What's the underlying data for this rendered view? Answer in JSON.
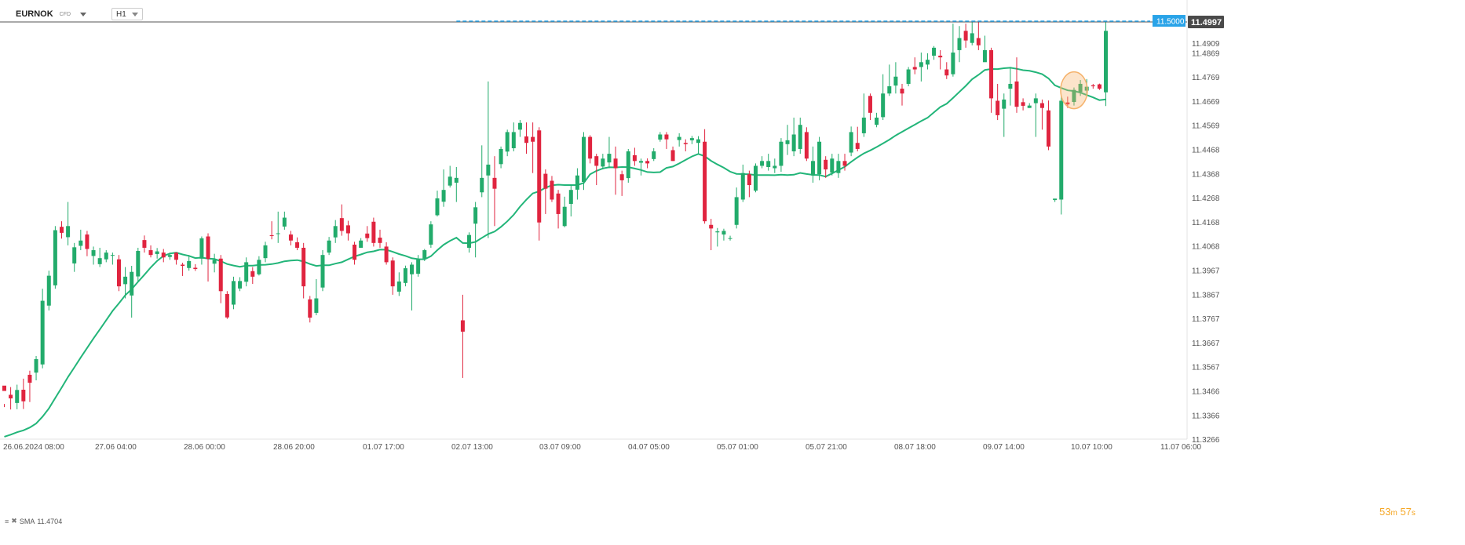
{
  "header": {
    "symbol": "EURNOK",
    "instrument_type": "CFD",
    "timeframe": "H1"
  },
  "indicator": {
    "name": "SMA",
    "value": "11.4704"
  },
  "countdown": {
    "minutes": "53",
    "minutes_unit": "m",
    "seconds": "57",
    "seconds_unit": "s"
  },
  "colors": {
    "up": "#22ab6b",
    "down": "#e0243f",
    "sma": "#22b579",
    "price_line": "#555555",
    "alert_line": "#29a3e8",
    "highlight": "#f5b26b"
  },
  "chart_data": {
    "type": "candlestick",
    "symbol": "EURNOK",
    "timeframe": "H1",
    "ylim": [
      11.3266,
      11.5088
    ],
    "y_ticks": [
      "11.4909",
      "11.4869",
      "11.4769",
      "11.4669",
      "11.4569",
      "11.4468",
      "11.4368",
      "11.4268",
      "11.4168",
      "11.4068",
      "11.3967",
      "11.3867",
      "11.3767",
      "11.3667",
      "11.3567",
      "11.3466",
      "11.3366",
      "11.3266"
    ],
    "x_tick_labels": [
      "26.06.2024 08:00",
      "27.06 04:00",
      "28.06 00:00",
      "28.06 20:00",
      "01.07 17:00",
      "02.07 13:00",
      "03.07 09:00",
      "04.07 05:00",
      "05.07 01:00",
      "05.07 21:00",
      "08.07 18:00",
      "09.07 14:00",
      "10.07 10:00",
      "11.07 06:00"
    ],
    "current_price": 11.4997,
    "current_price_label": "11.4997",
    "alert_level": 11.5,
    "alert_label": "11.5000",
    "highlighted_candle_index": 168,
    "sma_period_label": "SMA",
    "sma_last": 11.4704,
    "ohlc": [
      [
        11.3488,
        11.3466,
        11.3412,
        11.3399
      ],
      [
        11.345,
        11.3435,
        11.3482,
        11.3389
      ],
      [
        11.3416,
        11.347,
        11.3492,
        11.339
      ],
      [
        11.3471,
        11.3423,
        11.3517,
        11.3391
      ],
      [
        11.3533,
        11.35,
        11.355,
        11.342
      ],
      [
        11.3542,
        11.3598,
        11.3611,
        11.351
      ],
      [
        11.3576,
        11.384,
        11.389,
        11.356
      ],
      [
        11.382,
        11.3944,
        11.3965,
        11.38
      ],
      [
        11.3904,
        11.4133,
        11.415,
        11.389
      ],
      [
        11.4147,
        11.4122,
        11.417,
        11.4098
      ],
      [
        11.4104,
        11.415,
        11.425,
        11.407
      ],
      [
        11.3995,
        11.4062,
        11.408,
        11.396
      ],
      [
        11.4068,
        11.409,
        11.4135,
        11.405
      ],
      [
        11.4115,
        11.4055,
        11.413,
        11.4025
      ],
      [
        11.4026,
        11.405,
        11.4065,
        11.399
      ],
      [
        11.3992,
        11.4017,
        11.406,
        11.398
      ],
      [
        11.4012,
        11.404,
        11.405,
        11.4
      ],
      [
        11.4028,
        11.403,
        11.404,
        11.399
      ],
      [
        11.4012,
        11.39,
        11.403,
        11.388
      ],
      [
        11.3909,
        11.394,
        11.398,
        11.385
      ],
      [
        11.3862,
        11.396,
        11.3985,
        11.377
      ],
      [
        11.3941,
        11.4047,
        11.406,
        11.392
      ],
      [
        11.4092,
        11.406,
        11.4111,
        11.404
      ],
      [
        11.405,
        11.403,
        11.407,
        11.402
      ],
      [
        11.4034,
        11.4045,
        11.4059,
        11.4015
      ],
      [
        11.404,
        11.402,
        11.4055,
        11.4
      ],
      [
        11.4022,
        11.403,
        11.404,
        11.401
      ],
      [
        11.404,
        11.401,
        11.4041,
        11.399
      ],
      [
        11.399,
        11.3985,
        11.3998,
        11.3943
      ],
      [
        11.3976,
        11.4005,
        11.403,
        11.3965
      ],
      [
        11.3977,
        11.3972,
        11.3992,
        11.3964
      ],
      [
        11.4015,
        11.4099,
        11.4107,
        11.399
      ],
      [
        11.4107,
        11.4014,
        11.412,
        11.392
      ],
      [
        11.3994,
        11.401,
        11.4035,
        11.3958
      ],
      [
        11.4015,
        11.388,
        11.403,
        11.383
      ],
      [
        11.3868,
        11.3771,
        11.388,
        11.3765
      ],
      [
        11.3824,
        11.3922,
        11.394,
        11.3805
      ],
      [
        11.3891,
        11.3922,
        11.3938,
        11.388
      ],
      [
        11.3919,
        11.4,
        11.402,
        11.39
      ],
      [
        11.3963,
        11.394,
        11.398,
        11.391
      ],
      [
        11.395,
        11.401,
        11.4025,
        11.3945
      ],
      [
        11.4017,
        11.407,
        11.4085,
        11.4
      ],
      [
        11.4112,
        11.411,
        11.417,
        11.4095
      ],
      [
        11.4118,
        11.412,
        11.421,
        11.408
      ],
      [
        11.4148,
        11.4185,
        11.421,
        11.4135
      ],
      [
        11.4115,
        11.409,
        11.413,
        11.407
      ],
      [
        11.4083,
        11.406,
        11.4103,
        11.405
      ],
      [
        11.406,
        11.39,
        11.408,
        11.385
      ],
      [
        11.3846,
        11.377,
        11.386,
        11.375
      ],
      [
        11.379,
        11.385,
        11.393,
        11.378
      ],
      [
        11.3895,
        11.403,
        11.405,
        11.388
      ],
      [
        11.404,
        11.409,
        11.4105,
        11.403
      ],
      [
        11.4103,
        11.415,
        11.4175,
        11.408
      ],
      [
        11.4183,
        11.413,
        11.424,
        11.411
      ],
      [
        11.4153,
        11.412,
        11.4172,
        11.409
      ],
      [
        11.4073,
        11.401,
        11.4085,
        11.399
      ],
      [
        11.406,
        11.409,
        11.41,
        11.406
      ],
      [
        11.4119,
        11.41,
        11.415,
        11.4085
      ],
      [
        11.4168,
        11.408,
        11.4185,
        11.4065
      ],
      [
        11.4102,
        11.408,
        11.4135,
        11.406
      ],
      [
        11.4065,
        11.4,
        11.4083,
        11.399
      ],
      [
        11.4007,
        11.39,
        11.402,
        11.3865
      ],
      [
        11.3878,
        11.392,
        11.3958,
        11.386
      ],
      [
        11.3914,
        11.3975,
        11.3986,
        11.39
      ],
      [
        11.395,
        11.399,
        11.4,
        11.38
      ],
      [
        11.3952,
        11.4012,
        11.403,
        11.394
      ],
      [
        11.4015,
        11.405,
        11.4055,
        11.4005
      ],
      [
        11.4073,
        11.4157,
        11.417,
        11.406
      ],
      [
        11.4195,
        11.4265,
        11.4297,
        11.419
      ],
      [
        11.4251,
        11.43,
        11.4385,
        11.423
      ],
      [
        11.4318,
        11.4355,
        11.44,
        11.431
      ],
      [
        11.433,
        11.435,
        11.4395,
        11.425
      ],
      [
        11.3759,
        11.3712,
        11.3865,
        11.352
      ],
      [
        11.406,
        11.4113,
        11.4124,
        11.404
      ],
      [
        11.416,
        11.4228,
        11.425,
        11.402
      ],
      [
        11.429,
        11.435,
        11.4485,
        11.427
      ],
      [
        11.436,
        11.4405,
        11.475,
        11.41
      ],
      [
        11.435,
        11.4305,
        11.444,
        11.415
      ],
      [
        11.4407,
        11.447,
        11.448,
        11.439
      ],
      [
        11.4459,
        11.454,
        11.455,
        11.444
      ],
      [
        11.4473,
        11.454,
        11.458,
        11.446
      ],
      [
        11.455,
        11.4578,
        11.459,
        11.452
      ],
      [
        11.4522,
        11.4495,
        11.458,
        11.445
      ],
      [
        11.452,
        11.45,
        11.458,
        11.437
      ],
      [
        11.4547,
        11.4165,
        11.456,
        11.409
      ],
      [
        11.4367,
        11.4305,
        11.4385,
        11.42
      ],
      [
        11.4338,
        11.426,
        11.4358,
        11.425
      ],
      [
        11.4285,
        11.42,
        11.43,
        11.414
      ],
      [
        11.415,
        11.423,
        11.4272,
        11.4145
      ],
      [
        11.4242,
        11.43,
        11.432,
        11.419
      ],
      [
        11.4301,
        11.436,
        11.439,
        11.426
      ],
      [
        11.4333,
        11.452,
        11.454,
        11.43
      ],
      [
        11.452,
        11.443,
        11.4527,
        11.441
      ],
      [
        11.444,
        11.44,
        11.445,
        11.432
      ],
      [
        11.4397,
        11.443,
        11.445,
        11.4385
      ],
      [
        11.4414,
        11.445,
        11.452,
        11.439
      ],
      [
        11.443,
        11.439,
        11.448,
        11.428
      ],
      [
        11.4365,
        11.434,
        11.438,
        11.4275
      ],
      [
        11.4349,
        11.446,
        11.447,
        11.433
      ],
      [
        11.4444,
        11.442,
        11.4475,
        11.44
      ],
      [
        11.4413,
        11.442,
        11.443,
        11.436
      ],
      [
        11.442,
        11.441,
        11.4431,
        11.439
      ],
      [
        11.4428,
        11.446,
        11.4473,
        11.442
      ],
      [
        11.4509,
        11.453,
        11.454,
        11.45
      ],
      [
        11.453,
        11.451,
        11.454,
        11.447
      ],
      [
        11.4465,
        11.442,
        11.448,
        11.442
      ],
      [
        11.4507,
        11.452,
        11.4535,
        11.448
      ],
      [
        11.4495,
        11.449,
        11.451,
        11.446
      ],
      [
        11.4506,
        11.4515,
        11.4524,
        11.449
      ],
      [
        11.4495,
        11.451,
        11.4523,
        11.445
      ],
      [
        11.45,
        11.417,
        11.4552,
        11.416
      ],
      [
        11.4155,
        11.414,
        11.418,
        11.405
      ],
      [
        11.4124,
        11.4128,
        11.4142,
        11.4065
      ],
      [
        11.4115,
        11.413,
        11.4139,
        11.409
      ],
      [
        11.4098,
        11.41,
        11.411,
        11.409
      ],
      [
        11.4155,
        11.427,
        11.431,
        11.414
      ],
      [
        11.426,
        11.437,
        11.4405,
        11.425
      ],
      [
        11.4365,
        11.432,
        11.438,
        11.427
      ],
      [
        11.4297,
        11.44,
        11.441,
        11.429
      ],
      [
        11.44,
        11.442,
        11.444,
        11.439
      ],
      [
        11.4395,
        11.442,
        11.445,
        11.438
      ],
      [
        11.439,
        11.44,
        11.443,
        11.437
      ],
      [
        11.44,
        11.45,
        11.4515,
        11.4375
      ],
      [
        11.449,
        11.4506,
        11.457,
        11.4445
      ],
      [
        11.446,
        11.453,
        11.46,
        11.444
      ],
      [
        11.447,
        11.457,
        11.46,
        11.445
      ],
      [
        11.454,
        11.443,
        11.456,
        11.442
      ],
      [
        11.436,
        11.442,
        11.448,
        11.433
      ],
      [
        11.4365,
        11.45,
        11.452,
        11.434
      ],
      [
        11.4425,
        11.4385,
        11.444,
        11.435
      ],
      [
        11.4372,
        11.443,
        11.445,
        11.436
      ],
      [
        11.437,
        11.442,
        11.445,
        11.435
      ],
      [
        11.442,
        11.44,
        11.445,
        11.438
      ],
      [
        11.4455,
        11.454,
        11.4563,
        11.444
      ],
      [
        11.4495,
        11.447,
        11.4562,
        11.446
      ],
      [
        11.4535,
        11.46,
        11.47,
        11.452
      ],
      [
        11.469,
        11.462,
        11.47,
        11.459
      ],
      [
        11.457,
        11.46,
        11.462,
        11.456
      ],
      [
        11.4602,
        11.47,
        11.478,
        11.459
      ],
      [
        11.47,
        11.473,
        11.482,
        11.469
      ],
      [
        11.4733,
        11.477,
        11.483,
        11.47
      ],
      [
        11.472,
        11.47,
        11.474,
        11.465
      ],
      [
        11.474,
        11.48,
        11.481,
        11.473
      ],
      [
        11.481,
        11.48,
        11.485,
        11.478
      ],
      [
        11.481,
        11.483,
        11.487,
        11.475
      ],
      [
        11.482,
        11.484,
        11.4867,
        11.48
      ],
      [
        11.4857,
        11.489,
        11.4897,
        11.484
      ],
      [
        11.4857,
        11.485,
        11.488,
        11.48
      ],
      [
        11.48,
        11.4775,
        11.483,
        11.476
      ],
      [
        11.478,
        11.487,
        11.499,
        11.477
      ],
      [
        11.488,
        11.493,
        11.498,
        11.483
      ],
      [
        11.496,
        11.492,
        11.499,
        11.489
      ],
      [
        11.491,
        11.495,
        11.4999,
        11.49
      ],
      [
        11.493,
        11.49,
        11.4999,
        11.488
      ],
      [
        11.483,
        11.488,
        11.494,
        11.485
      ],
      [
        11.488,
        11.468,
        11.489,
        11.462
      ],
      [
        11.467,
        11.461,
        11.474,
        11.459
      ],
      [
        11.4637,
        11.4675,
        11.47,
        11.452
      ],
      [
        11.472,
        11.474,
        11.481,
        11.465
      ],
      [
        11.475,
        11.4645,
        11.485,
        11.462
      ],
      [
        11.4664,
        11.4649,
        11.468,
        11.463
      ],
      [
        11.464,
        11.465,
        11.466,
        11.464
      ],
      [
        11.466,
        11.468,
        11.47,
        11.452
      ],
      [
        11.466,
        11.464,
        11.4675,
        11.455
      ],
      [
        11.463,
        11.448,
        11.4671,
        11.4465
      ],
      [
        11.4258,
        11.4264,
        11.426,
        11.425
      ],
      [
        11.426,
        11.467,
        11.469,
        11.4198
      ],
      [
        11.4663,
        11.4655,
        11.4687,
        11.464
      ],
      [
        11.4665,
        11.4715,
        11.4725,
        11.465
      ],
      [
        11.4706,
        11.474,
        11.4756,
        11.469
      ],
      [
        11.4712,
        11.4728,
        11.476,
        11.469
      ],
      [
        11.4734,
        11.473,
        11.474,
        11.472
      ],
      [
        11.4738,
        11.472,
        11.4741,
        11.4715
      ],
      [
        11.4705,
        11.496,
        11.5,
        11.4648
      ]
    ]
  }
}
